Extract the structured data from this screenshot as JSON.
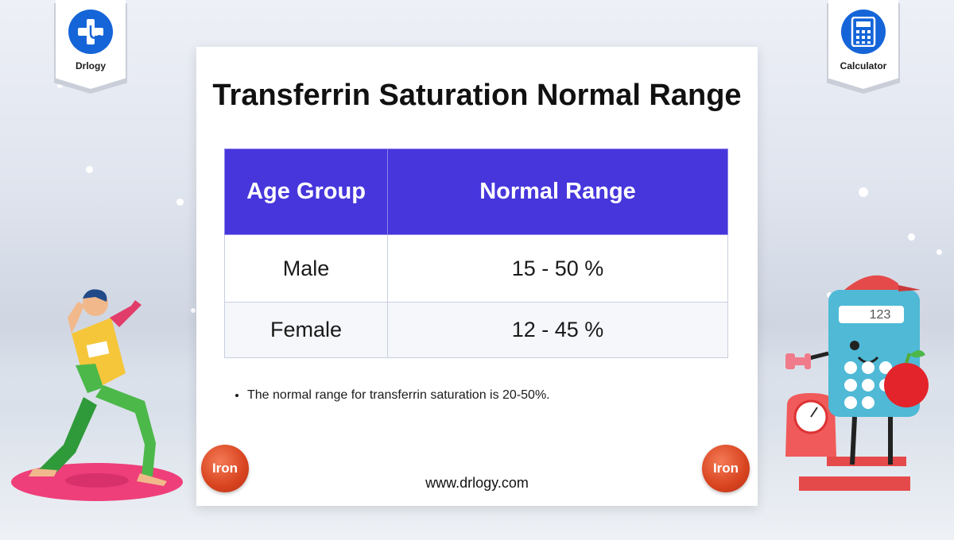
{
  "badges": {
    "left_label": "Drlogy",
    "right_label": "Calculator"
  },
  "card": {
    "title": "Transferrin Saturation Normal Range",
    "table": {
      "headers": [
        "Age Group",
        "Normal Range"
      ],
      "rows": [
        [
          "Male",
          "15 - 50 %"
        ],
        [
          "Female",
          "12 - 45 %"
        ]
      ]
    },
    "notes": [
      "The normal range for transferrin saturation is 20-50%."
    ],
    "website": "www.drlogy.com",
    "iron_label": "Iron",
    "iron_label_right": "Iron"
  },
  "colors": {
    "header_bg": "#4636dc",
    "badge_blue": "#1565d8",
    "iron_red": "#d8431f"
  },
  "icons": [
    "stethoscope-cross-icon",
    "calculator-icon",
    "exercising-man-illustration",
    "calculator-scale-mascot-illustration"
  ]
}
